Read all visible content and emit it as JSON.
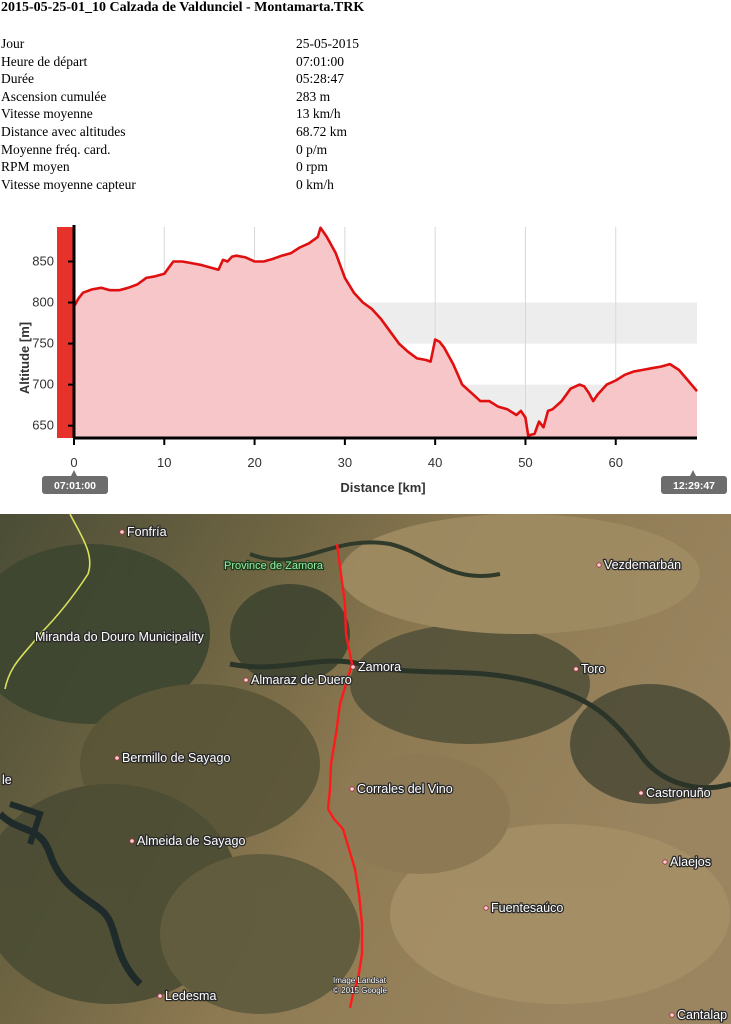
{
  "title": "2015-05-25-01_10 Calzada de Valdunciel - Montamarta.TRK",
  "stats": [
    {
      "label": "Jour",
      "value": "25-05-2015"
    },
    {
      "label": "Heure de départ",
      "value": "07:01:00"
    },
    {
      "label": "Durée",
      "value": "05:28:47"
    },
    {
      "label": "Ascension cumulée",
      "value": "283 m"
    },
    {
      "label": "Vitesse moyenne",
      "value": "13 km/h"
    },
    {
      "label": "Distance avec altitudes",
      "value": "68.72 km"
    },
    {
      "label": "Moyenne fréq. card.",
      "value": "0 p/m"
    },
    {
      "label": "RPM moyen",
      "value": "0 rpm"
    },
    {
      "label": "Vitesse moyenne capteur",
      "value": "0 km/h"
    }
  ],
  "chart_data": {
    "type": "area",
    "xlabel": "Distance [km]",
    "ylabel": "Altitude [m]",
    "xlim": [
      0,
      69
    ],
    "ylim": [
      635,
      892
    ],
    "x_ticks": [
      0,
      10,
      20,
      30,
      40,
      50,
      60
    ],
    "y_ticks": [
      650,
      700,
      750,
      800,
      850
    ],
    "start_time": "07:01:00",
    "end_time": "12:29:47",
    "color": "#e01010",
    "fill_color": "#f7c6c8",
    "series": [
      {
        "points": [
          [
            0,
            795
          ],
          [
            0.5,
            805
          ],
          [
            1,
            812
          ],
          [
            2,
            816
          ],
          [
            3,
            818
          ],
          [
            4,
            815
          ],
          [
            5,
            815
          ],
          [
            6,
            818
          ],
          [
            7,
            822
          ],
          [
            8,
            830
          ],
          [
            9,
            832
          ],
          [
            10,
            835
          ],
          [
            11,
            850
          ],
          [
            12,
            850
          ],
          [
            13,
            848
          ],
          [
            14,
            846
          ],
          [
            15,
            843
          ],
          [
            16,
            840
          ],
          [
            16.5,
            852
          ],
          [
            17,
            850
          ],
          [
            17.5,
            856
          ],
          [
            18,
            857
          ],
          [
            19,
            855
          ],
          [
            20,
            850
          ],
          [
            21,
            850
          ],
          [
            22,
            853
          ],
          [
            23,
            857
          ],
          [
            24,
            860
          ],
          [
            25,
            867
          ],
          [
            26,
            872
          ],
          [
            27,
            880
          ],
          [
            27.3,
            891
          ],
          [
            28,
            880
          ],
          [
            29,
            860
          ],
          [
            30,
            830
          ],
          [
            31,
            812
          ],
          [
            32,
            800
          ],
          [
            33,
            792
          ],
          [
            34,
            780
          ],
          [
            35,
            765
          ],
          [
            36,
            750
          ],
          [
            37,
            740
          ],
          [
            38,
            732
          ],
          [
            39,
            730
          ],
          [
            39.5,
            728
          ],
          [
            40,
            755
          ],
          [
            40.5,
            752
          ],
          [
            41,
            745
          ],
          [
            42,
            725
          ],
          [
            43,
            700
          ],
          [
            44,
            690
          ],
          [
            45,
            680
          ],
          [
            46,
            680
          ],
          [
            47,
            673
          ],
          [
            48,
            670
          ],
          [
            49,
            663
          ],
          [
            49.5,
            668
          ],
          [
            50,
            660
          ],
          [
            50.3,
            638
          ],
          [
            51,
            640
          ],
          [
            51.5,
            655
          ],
          [
            52,
            648
          ],
          [
            52.5,
            668
          ],
          [
            53,
            670
          ],
          [
            54,
            680
          ],
          [
            55,
            695
          ],
          [
            56,
            700
          ],
          [
            56.5,
            698
          ],
          [
            57,
            690
          ],
          [
            57.5,
            680
          ],
          [
            58,
            688
          ],
          [
            59,
            700
          ],
          [
            60,
            705
          ],
          [
            61,
            712
          ],
          [
            62,
            716
          ],
          [
            63,
            718
          ],
          [
            64,
            720
          ],
          [
            65,
            722
          ],
          [
            66,
            725
          ],
          [
            67,
            718
          ],
          [
            68,
            705
          ],
          [
            69,
            692
          ]
        ]
      }
    ]
  },
  "map": {
    "labels": [
      {
        "name": "Fonfría",
        "kind": "place"
      },
      {
        "name": "Province de Zamora",
        "kind": "region"
      },
      {
        "name": "Vezdemarbán",
        "kind": "place"
      },
      {
        "name": "Miranda do Douro Municipality",
        "kind": "region"
      },
      {
        "name": "Zamora",
        "kind": "place"
      },
      {
        "name": "Toro",
        "kind": "place"
      },
      {
        "name": "Almaraz de Duero",
        "kind": "place"
      },
      {
        "name": "Bermillo de Sayago",
        "kind": "place"
      },
      {
        "name": "Corrales del Vino",
        "kind": "place"
      },
      {
        "name": "Castronuño",
        "kind": "place"
      },
      {
        "name": "Almeida de Sayago",
        "kind": "place"
      },
      {
        "name": "Alaejos",
        "kind": "place"
      },
      {
        "name": "Fuentesaúco",
        "kind": "place"
      },
      {
        "name": "Ledesma",
        "kind": "place"
      },
      {
        "name": "Cantalap",
        "kind": "place"
      },
      {
        "name": "le",
        "kind": "place"
      }
    ],
    "credit_line1": "Image Landsat",
    "credit_line2": "© 2015 Google",
    "track_color": "#ff1a1a"
  }
}
